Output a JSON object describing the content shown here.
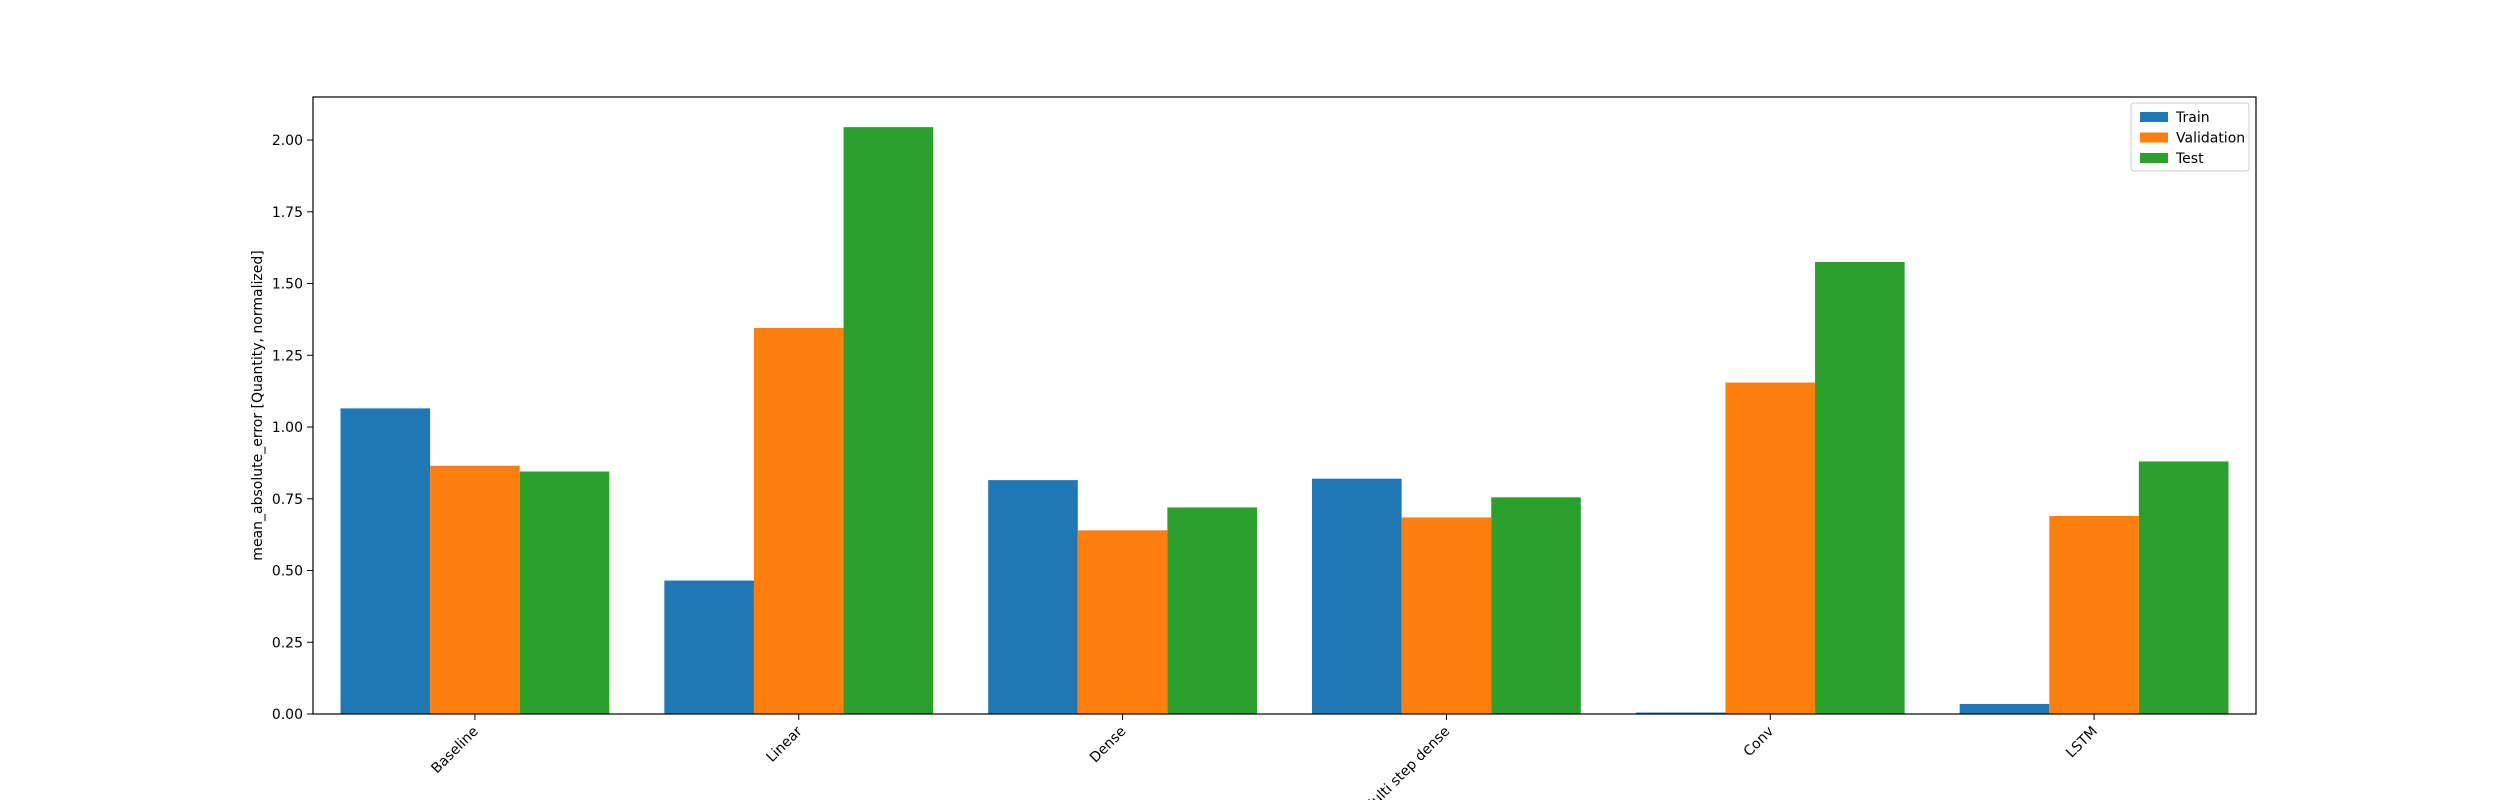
{
  "chart_data": {
    "type": "bar",
    "title": "",
    "xlabel": "",
    "ylabel": "mean_absolute_error [Quantity, normalized]",
    "categories": [
      "Baseline",
      "Linear",
      "Dense",
      "Multi step dense",
      "Conv",
      "LSTM"
    ],
    "series": [
      {
        "name": "Train",
        "color": "#1f77b4",
        "values": [
          1.065,
          0.465,
          0.815,
          0.82,
          0.005,
          0.035
        ]
      },
      {
        "name": "Validation",
        "color": "#ff7f0e",
        "values": [
          0.865,
          1.345,
          0.64,
          0.685,
          1.155,
          0.69
        ]
      },
      {
        "name": "Test",
        "color": "#2ca02c",
        "values": [
          0.845,
          2.045,
          0.72,
          0.755,
          1.575,
          0.88
        ]
      }
    ],
    "ylim": [
      0,
      2.15
    ],
    "yticks": [
      "0.00",
      "0.25",
      "0.50",
      "0.75",
      "1.00",
      "1.25",
      "1.50",
      "1.75",
      "2.00"
    ],
    "grid": false,
    "legend_position": "top-right",
    "xtick_rotation": 45
  }
}
